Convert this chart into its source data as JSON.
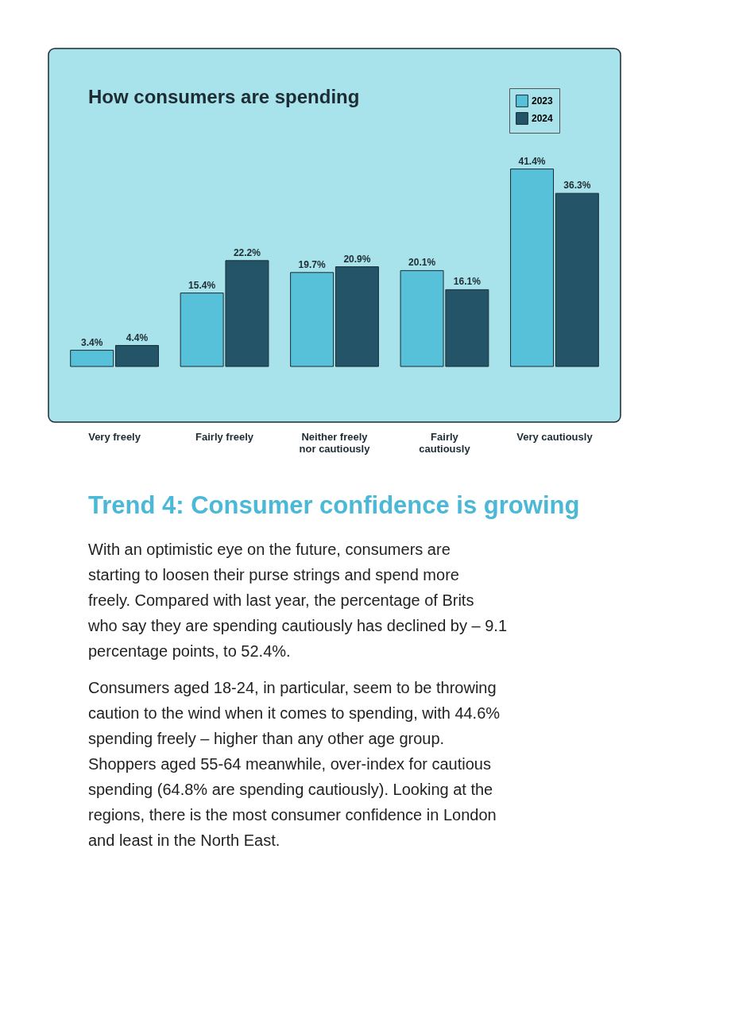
{
  "chart_data": {
    "type": "bar",
    "title": "How consumers are spending",
    "categories": [
      "Very freely",
      "Fairly freely",
      "Neither freely nor cautiously",
      "Fairly cautiously",
      "Very cautiously"
    ],
    "series": [
      {
        "name": "2023",
        "color": "#56c1d9",
        "values": [
          3.4,
          15.4,
          19.7,
          20.1,
          41.4
        ],
        "value_labels": [
          "3.4%",
          "15.4%",
          "19.7%",
          "20.1%",
          "41.4%"
        ]
      },
      {
        "name": "2024",
        "color": "#235468",
        "values": [
          4.4,
          22.2,
          20.9,
          16.1,
          36.3
        ],
        "value_labels": [
          "4.4%",
          "22.2%",
          "20.9%",
          "16.1%",
          "36.3%"
        ]
      }
    ],
    "tick_labels": "x",
    "legend": "top right",
    "grid": false,
    "annotations": [
      "Trend 4: Consumer confidence is growing",
      "With an optimistic eye on the future, consumers are starting to loosen their purse strings and spend more freely. Compared with last year, the percentage of Brits who say they are spending cautiously has declined by – 9.1 percentage points, to 52.4%.",
      "Consumers aged 18-24, in particular, seem to be throwing caution to the wind when it comes to spending, with 44.6% spending freely – higher than any other age group. Shoppers aged 55-64 meanwhile, over-index for cautious spending (64.8% are spending cautiously). Looking at the regions, there is the most consumer confidence in London and least in the North East."
    ]
  }
}
